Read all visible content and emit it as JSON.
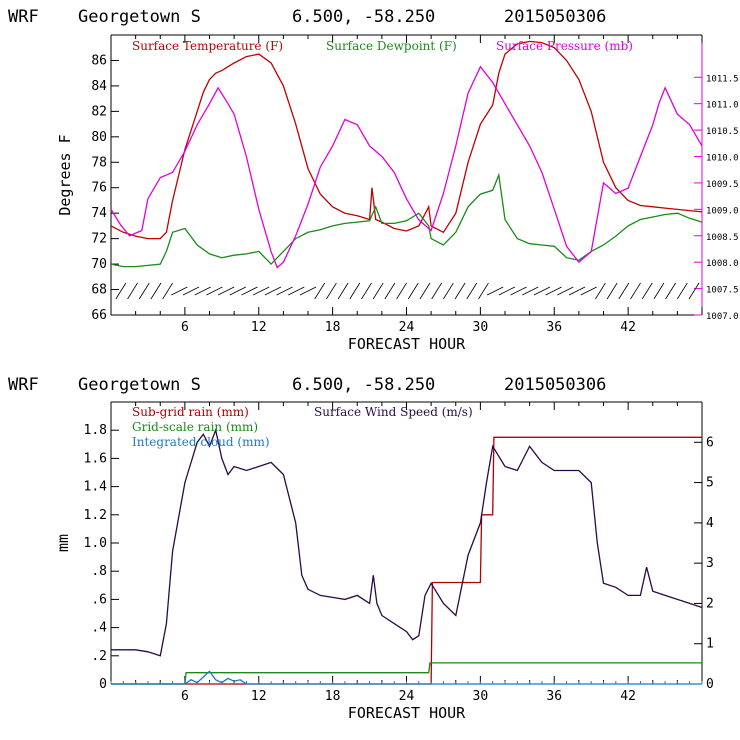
{
  "header": {
    "model": "WRF",
    "location": "Georgetown S",
    "coords": "6.500, -58.250",
    "init": "2015050306"
  },
  "colors": {
    "temperature": "#c00000",
    "dewpoint": "#1a8a1a",
    "pressure": "#e000e0",
    "subgrid_rain": "#b00000",
    "gridscale_rain": "#1a8a1a",
    "cloud": "#1f78c8",
    "wind": "#2a0a4a"
  },
  "chart_data": [
    {
      "type": "line",
      "xlabel": "FORECAST HOUR",
      "ylabel": "Degrees F",
      "xlim": [
        0,
        48
      ],
      "ylim": [
        66,
        88
      ],
      "x_ticks": [
        6,
        12,
        18,
        24,
        30,
        36,
        42
      ],
      "y_ticks": [
        66,
        68,
        70,
        72,
        74,
        76,
        78,
        80,
        82,
        84,
        86
      ],
      "y2_label": "",
      "y2lim": [
        1007.0,
        1012.3
      ],
      "y2_ticks": [
        "1007.0",
        "1007.5",
        "1008.0",
        "1008.5",
        "1009.0",
        "1009.5",
        "1010.0",
        "1010.5",
        "1011.0",
        "1011.5"
      ],
      "legend": [
        "Surface Temperature (F)",
        "Surface Dewpoint (F)",
        "Surface Pressure (mb)"
      ],
      "legend_position": "top",
      "wind_barbs_row": true,
      "series": [
        {
          "name": "Surface Temperature (F)",
          "axis": "left",
          "x": [
            0,
            1,
            2,
            3,
            4,
            4.5,
            5,
            6,
            7,
            7.5,
            8,
            8.5,
            9,
            10,
            11,
            12,
            13,
            14,
            15,
            16,
            17,
            18,
            19,
            20,
            21,
            21.2,
            21.5,
            22,
            23,
            24,
            25,
            25.8,
            26,
            27,
            28,
            29,
            30,
            31,
            31.5,
            32,
            33,
            34,
            35,
            36,
            37,
            38,
            39,
            40,
            41,
            42,
            43,
            44,
            45,
            46,
            47,
            48
          ],
          "y": [
            73,
            72.5,
            72.2,
            72,
            72,
            72.5,
            75,
            79,
            82,
            83.5,
            84.5,
            85,
            85.2,
            85.8,
            86.3,
            86.5,
            85.8,
            84,
            81,
            77.5,
            75.5,
            74.5,
            74,
            73.8,
            73.5,
            76,
            73.5,
            73.3,
            72.8,
            72.6,
            73,
            74.5,
            73,
            72.5,
            74,
            78,
            81,
            82.5,
            85,
            86.5,
            87.3,
            87.5,
            87.4,
            87,
            86,
            84.5,
            82,
            78,
            76,
            75,
            74.6,
            74.5,
            74.4,
            74.3,
            74.2,
            74.1
          ]
        },
        {
          "name": "Surface Dewpoint (F)",
          "axis": "left",
          "x": [
            0,
            1,
            2,
            3,
            4,
            4.5,
            5,
            6,
            7,
            8,
            9,
            10,
            11,
            12,
            13,
            14,
            15,
            16,
            17,
            18,
            19,
            20,
            21,
            21.5,
            22,
            23,
            24,
            25,
            25.8,
            26,
            27,
            28,
            29,
            30,
            31,
            31.5,
            32,
            33,
            34,
            35,
            36,
            37,
            38,
            39,
            40,
            41,
            42,
            43,
            44,
            45,
            46,
            47,
            48
          ],
          "y": [
            70,
            69.8,
            69.8,
            69.9,
            70,
            71,
            72.5,
            72.8,
            71.5,
            70.8,
            70.5,
            70.7,
            70.8,
            71,
            70,
            71,
            72,
            72.5,
            72.7,
            73,
            73.2,
            73.3,
            73.4,
            74.5,
            73.2,
            73.2,
            73.4,
            74,
            73,
            72,
            71.5,
            72.5,
            74.5,
            75.5,
            75.8,
            77,
            73.5,
            72,
            71.6,
            71.5,
            71.4,
            70.5,
            70.3,
            71,
            71.5,
            72.2,
            73,
            73.5,
            73.7,
            73.9,
            74,
            73.6,
            73.3
          ]
        },
        {
          "name": "Surface Pressure (mb)",
          "axis": "right",
          "x": [
            0,
            0.8,
            1.5,
            2.5,
            3,
            4,
            5,
            6,
            7,
            8,
            8.7,
            9.5,
            10,
            11,
            12,
            13,
            13.5,
            14,
            15,
            16,
            17,
            18,
            19,
            20,
            21,
            22,
            23,
            24,
            25,
            26,
            27,
            28,
            29,
            30,
            31,
            32,
            33,
            34,
            35,
            36,
            37,
            38,
            39,
            40,
            41,
            42,
            43,
            44,
            44.5,
            45,
            46,
            47,
            48
          ],
          "y": [
            1009.0,
            1008.7,
            1008.5,
            1008.6,
            1009.2,
            1009.6,
            1009.7,
            1010.1,
            1010.6,
            1011.0,
            1011.3,
            1011.0,
            1010.8,
            1010.0,
            1009.0,
            1008.2,
            1007.9,
            1008.0,
            1008.5,
            1009.1,
            1009.8,
            1010.2,
            1010.7,
            1010.6,
            1010.2,
            1010.0,
            1009.7,
            1009.2,
            1008.8,
            1008.6,
            1009.3,
            1010.2,
            1011.2,
            1011.7,
            1011.4,
            1011.0,
            1010.6,
            1010.2,
            1009.7,
            1009.0,
            1008.3,
            1008.0,
            1008.2,
            1009.5,
            1009.3,
            1009.4,
            1010.0,
            1010.6,
            1011.0,
            1011.3,
            1010.8,
            1010.6,
            1010.2
          ]
        }
      ]
    },
    {
      "type": "line",
      "xlabel": "FORECAST HOUR",
      "ylabel": "mm",
      "xlim": [
        0,
        48
      ],
      "ylim": [
        0,
        2.0
      ],
      "x_ticks": [
        6,
        12,
        18,
        24,
        30,
        36,
        42
      ],
      "y_ticks": [
        "0",
        ".2",
        ".4",
        ".6",
        ".8",
        "1.0",
        "1.2",
        "1.4",
        "1.6",
        "1.8"
      ],
      "y2lim": [
        0,
        7
      ],
      "y2_ticks": [
        "0",
        "1",
        "2",
        "3",
        "4",
        "5",
        "6"
      ],
      "legend": [
        "Sub-grid rain (mm)",
        "Grid-scale rain (mm)",
        "Integrated cloud (mm)",
        "Surface Wind Speed (m/s)"
      ],
      "legend_position": "top-left",
      "series": [
        {
          "name": "Sub-grid rain (mm)",
          "axis": "left",
          "x": [
            0,
            25.5,
            26,
            26.1,
            30,
            30.1,
            31,
            31.1,
            48
          ],
          "y": [
            0,
            0,
            0,
            0.72,
            0.72,
            1.2,
            1.2,
            1.75,
            1.75
          ]
        },
        {
          "name": "Grid-scale rain (mm)",
          "axis": "left",
          "x": [
            0,
            6,
            6.1,
            25.8,
            25.9,
            48
          ],
          "y": [
            0,
            0,
            0.08,
            0.08,
            0.15,
            0.15
          ]
        },
        {
          "name": "Integrated cloud (mm)",
          "axis": "left",
          "x": [
            0,
            6,
            6.5,
            7,
            7.5,
            8,
            8.5,
            9,
            9.5,
            10,
            10.5,
            11,
            12,
            48
          ],
          "y": [
            0,
            0,
            0.03,
            0.01,
            0.05,
            0.09,
            0.03,
            0.01,
            0.04,
            0.02,
            0.03,
            0,
            0,
            0
          ]
        },
        {
          "name": "Surface Wind Speed (m/s)",
          "axis": "right",
          "x": [
            0,
            1,
            2,
            3,
            4,
            4.5,
            5,
            6,
            7,
            7.5,
            8,
            8.5,
            9,
            9.5,
            10,
            11,
            12,
            13,
            14,
            15,
            15.5,
            16,
            17,
            18,
            19,
            20,
            21,
            21.3,
            21.6,
            22,
            23,
            24,
            24.5,
            25,
            25.5,
            26,
            27,
            28,
            29,
            30,
            30.5,
            31,
            32,
            33,
            34,
            35,
            36,
            37,
            38,
            39,
            39.5,
            40,
            41,
            42,
            43,
            43.5,
            44,
            45,
            46,
            47,
            48
          ],
          "y": [
            0.85,
            0.85,
            0.85,
            0.8,
            0.7,
            1.5,
            3.3,
            5.0,
            6.0,
            6.2,
            5.9,
            6.3,
            5.6,
            5.2,
            5.4,
            5.3,
            5.4,
            5.5,
            5.2,
            4.0,
            2.7,
            2.35,
            2.2,
            2.15,
            2.1,
            2.2,
            2.0,
            2.7,
            2.0,
            1.7,
            1.5,
            1.3,
            1.1,
            1.2,
            2.2,
            2.5,
            2.0,
            1.7,
            3.2,
            4.0,
            5.0,
            5.9,
            5.4,
            5.3,
            5.9,
            5.5,
            5.3,
            5.3,
            5.3,
            5.0,
            3.5,
            2.5,
            2.4,
            2.2,
            2.2,
            2.9,
            2.3,
            2.2,
            2.1,
            2.0,
            1.9
          ]
        }
      ]
    }
  ]
}
